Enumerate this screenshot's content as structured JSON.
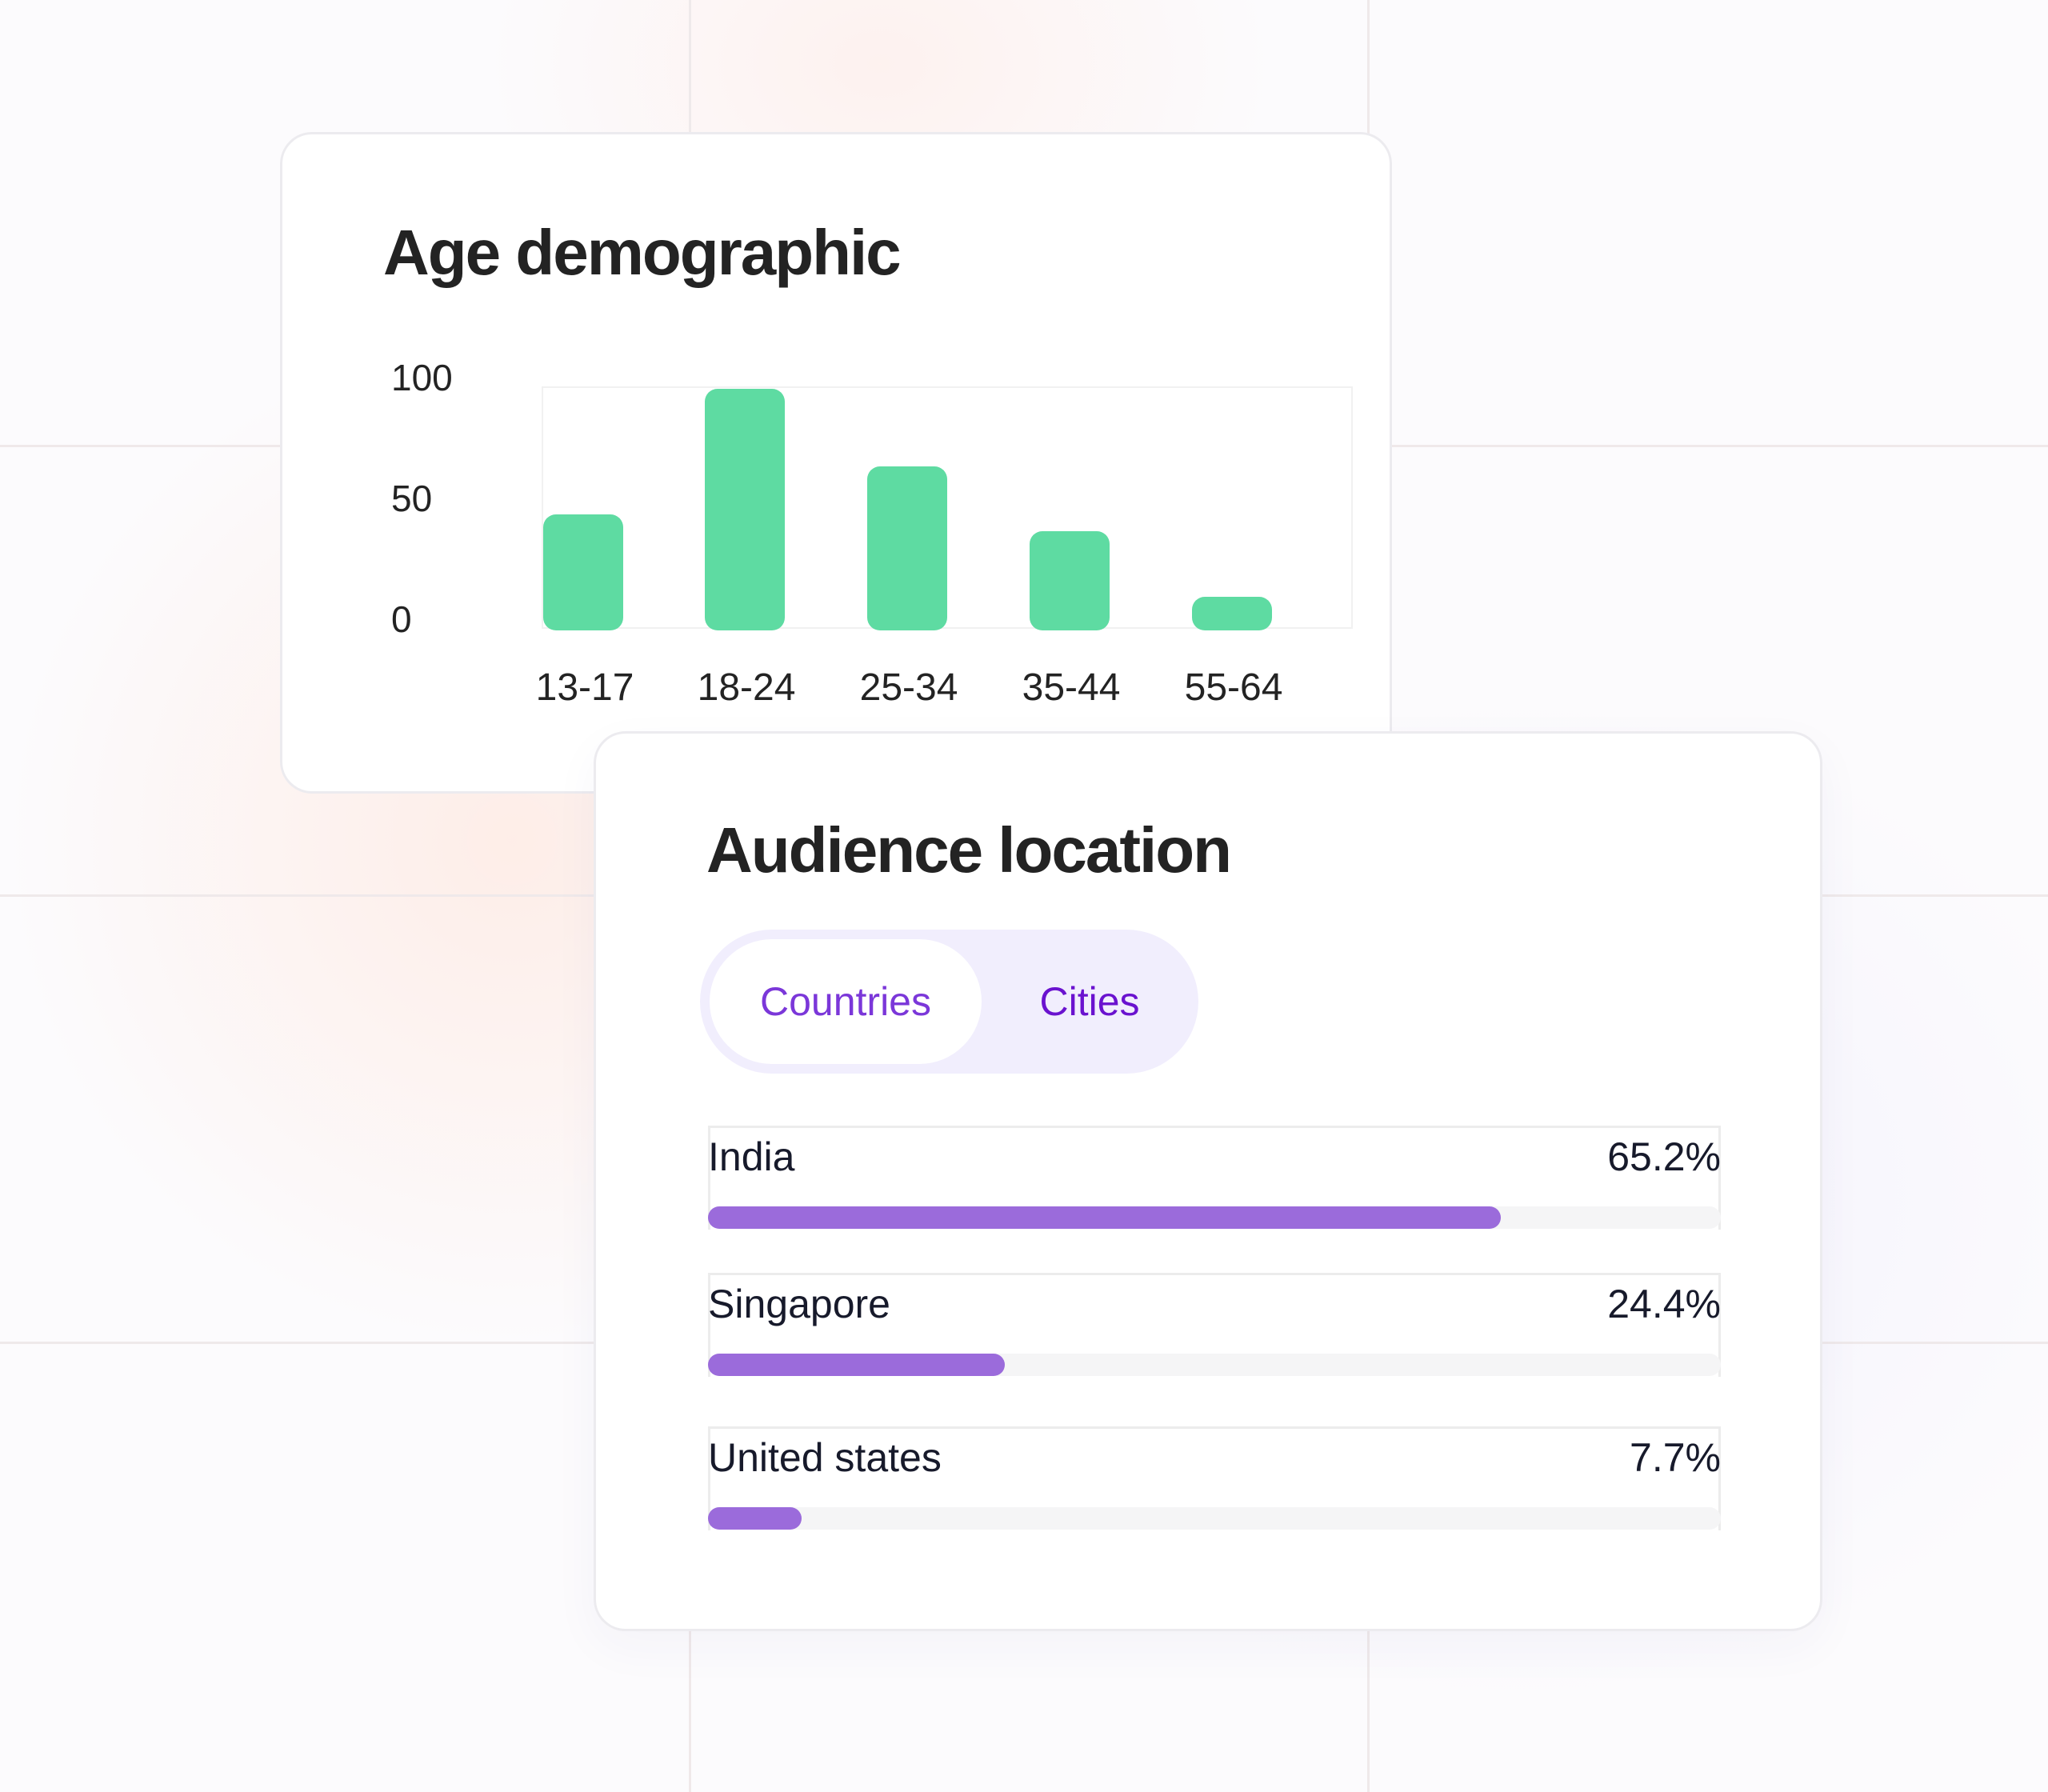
{
  "age_demographic": {
    "title": "Age demographic",
    "chart_data": {
      "type": "bar",
      "title": "Age demographic",
      "categories": [
        "13-17",
        "18-24",
        "25-34",
        "35-44",
        "55-64"
      ],
      "values": [
        43,
        95,
        63,
        36,
        9
      ],
      "ylim": [
        -5,
        100
      ],
      "y_ticks": [
        "100",
        "50",
        "0"
      ],
      "xlabel": "",
      "ylabel": "",
      "grid": false,
      "bar_color": "#5edba2"
    }
  },
  "audience_location": {
    "title": "Audience location",
    "tabs": [
      {
        "label": "Countries",
        "active": true
      },
      {
        "label": "Cities",
        "active": false
      }
    ],
    "rows": [
      {
        "name": "India",
        "percent_label": "65.2%",
        "value": 65.2
      },
      {
        "name": "Singapore",
        "percent_label": "24.4%",
        "value": 24.4
      },
      {
        "name": "United states",
        "percent_label": "7.7%",
        "value": 7.7
      }
    ],
    "bar_color": "#9b6bdb",
    "tab_active_color": "#7b37d9",
    "tab_inactive_color": "#6a12cf"
  }
}
